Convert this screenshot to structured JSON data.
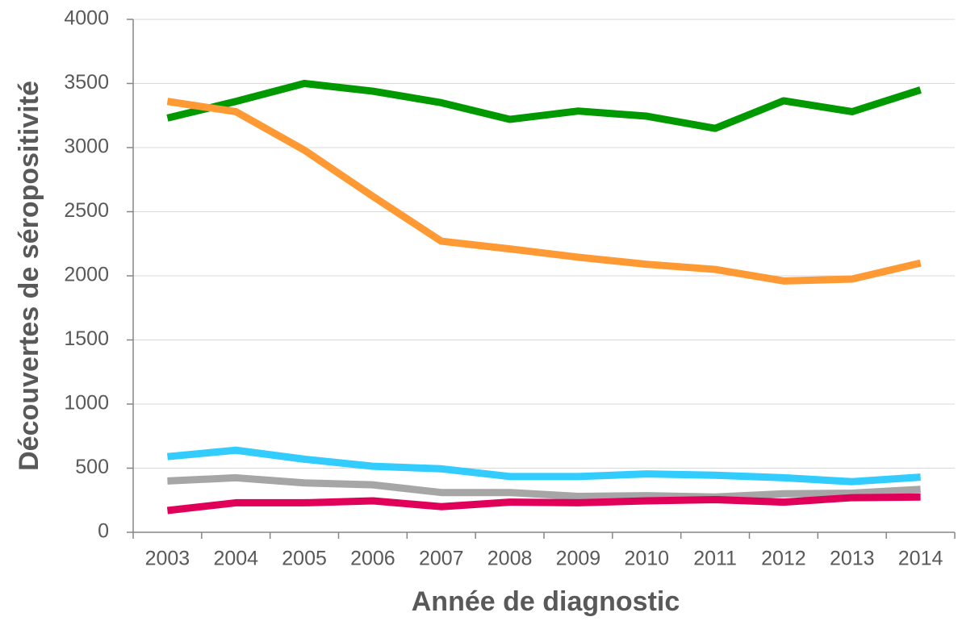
{
  "chart_data": {
    "type": "line",
    "x_label": "Année de diagnostic",
    "y_label": "Découvertes de séropositivité",
    "categories": [
      "2003",
      "2004",
      "2005",
      "2006",
      "2007",
      "2008",
      "2009",
      "2010",
      "2011",
      "2012",
      "2013",
      "2014"
    ],
    "series": [
      {
        "color": "#009900",
        "values": [
          3230,
          3360,
          3500,
          3440,
          3350,
          3220,
          3285,
          3245,
          3150,
          3365,
          3280,
          3450
        ]
      },
      {
        "color": "#ff9933",
        "values": [
          3360,
          3280,
          2980,
          2620,
          2270,
          2210,
          2145,
          2090,
          2050,
          1960,
          1975,
          2100
        ]
      },
      {
        "color": "#33ccff",
        "values": [
          590,
          640,
          570,
          515,
          495,
          435,
          435,
          455,
          445,
          425,
          395,
          430
        ]
      },
      {
        "color": "#a6a6a6",
        "values": [
          400,
          425,
          385,
          370,
          310,
          310,
          280,
          285,
          275,
          300,
          305,
          335
        ]
      },
      {
        "color": "#e0005a",
        "values": [
          170,
          230,
          230,
          245,
          200,
          235,
          230,
          245,
          255,
          235,
          270,
          275
        ]
      }
    ],
    "ylim": [
      0,
      4000
    ],
    "yticks": [
      0,
      500,
      1000,
      1500,
      2000,
      2500,
      3000,
      3500,
      4000
    ],
    "grid": true
  }
}
